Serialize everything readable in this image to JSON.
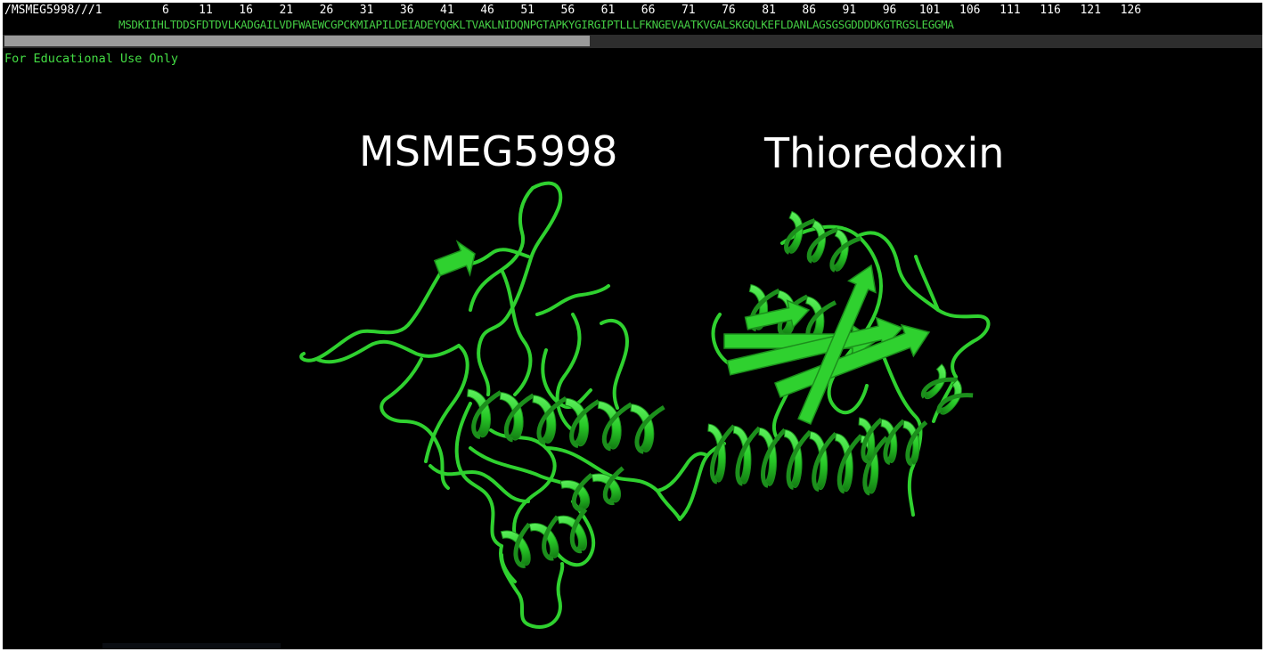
{
  "sequence_viewer": {
    "object_name": "/MSMEG5998///1",
    "residue_numbers": [
      "6",
      "11",
      "16",
      "21",
      "26",
      "31",
      "36",
      "41",
      "46",
      "51",
      "56",
      "61",
      "66",
      "71",
      "76",
      "81",
      "86",
      "91",
      "96",
      "101",
      "106",
      "111",
      "116",
      "121",
      "126"
    ],
    "residues": "MSDKIIHLTDDSFDTDVLKADGAILVDFWAEWCGPCKMIAPILDEIADEYQGKLTVAKLNIDQNPGTAPKYGIRGIPTLLLFKNGEVAATKVGALSKGQLKEFLDANLAGSGSGDDDDKGTRGSLEGGMA"
  },
  "watermark": "For Educational Use Only",
  "molecules": {
    "left_label": "MSMEG5998",
    "right_label": "Thioredoxin"
  },
  "colors": {
    "cartoon": "#2fd12f",
    "cartoon_shadow": "#1c8f1c",
    "sequence_text": "#44cc44",
    "background": "#000000"
  }
}
